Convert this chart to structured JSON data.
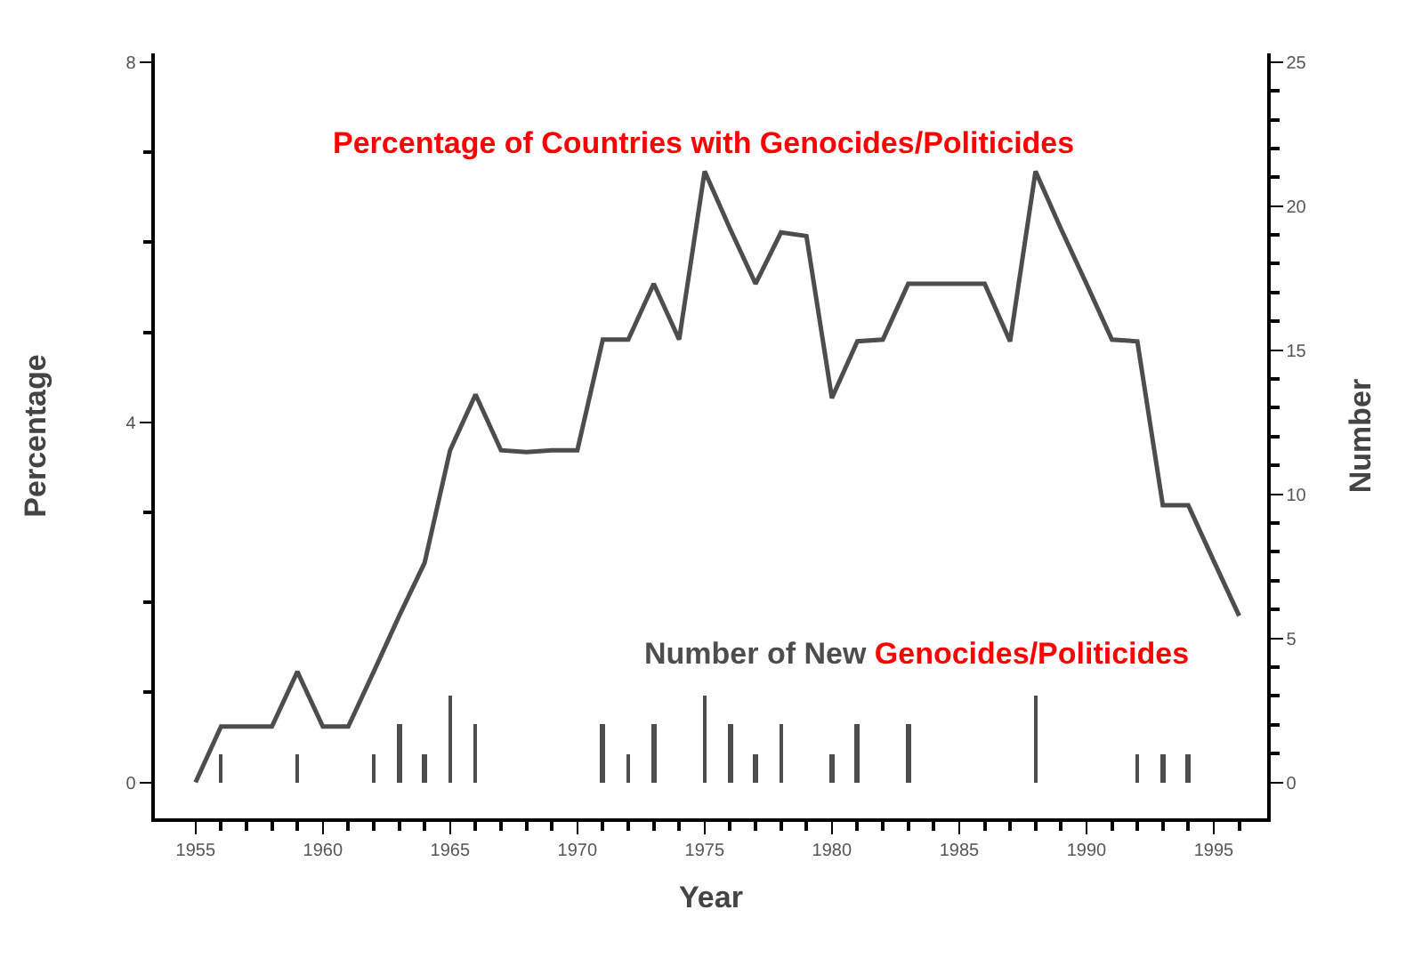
{
  "chart_data": {
    "type": "line",
    "xlabel": "Year",
    "ylabel": "Percentage",
    "y2label": "Number",
    "series": [
      {
        "name": "Percentage of Countries with Genocides/Politicides",
        "color": "#4d4d4d",
        "x": [
          1955,
          1956,
          1957,
          1958,
          1959,
          1960,
          1961,
          1962,
          1963,
          1964,
          1965,
          1966,
          1967,
          1968,
          1969,
          1970,
          1971,
          1972,
          1973,
          1974,
          1975,
          1976,
          1977,
          1978,
          1979,
          1980,
          1981,
          1982,
          1983,
          1984,
          1985,
          1986,
          1987,
          1988,
          1989,
          1990,
          1991,
          1992,
          1993,
          1994,
          1995,
          1996
        ],
        "values": [
          0,
          0.62,
          0.62,
          0.62,
          1.23,
          0.62,
          0.62,
          1.23,
          1.85,
          2.44,
          3.69,
          4.31,
          3.69,
          3.67,
          3.69,
          3.69,
          4.92,
          4.92,
          5.54,
          4.92,
          6.79,
          6.15,
          5.54,
          6.11,
          6.07,
          4.27,
          4.9,
          4.92,
          5.54,
          5.54,
          5.54,
          5.54,
          4.9,
          6.79,
          6.15,
          5.54,
          4.92,
          4.9,
          3.08,
          3.08,
          2.46,
          1.85
        ]
      },
      {
        "name": "Number of New Genocides/Politicides",
        "type": "bar",
        "axis": "y2",
        "color": "#4d4d4d",
        "x": [
          1956,
          1957,
          1958,
          1959,
          1960,
          1961,
          1962,
          1963,
          1964,
          1965,
          1966,
          1967,
          1968,
          1969,
          1970,
          1971,
          1972,
          1973,
          1974,
          1975,
          1976,
          1977,
          1978,
          1979,
          1980,
          1981,
          1982,
          1983,
          1984,
          1985,
          1986,
          1987,
          1988,
          1989,
          1990,
          1991,
          1992,
          1993,
          1994,
          1995,
          1996
        ],
        "values": [
          1,
          0,
          0,
          1,
          0,
          0,
          1,
          2,
          1,
          3,
          2,
          0,
          0,
          0,
          0,
          2,
          1,
          2,
          0,
          3,
          2,
          1,
          2,
          0,
          1,
          2,
          0,
          2,
          0,
          0,
          0,
          0,
          3,
          0,
          0,
          0,
          1,
          1,
          1,
          0,
          0
        ]
      }
    ],
    "xlim": [
      1953.4,
      1997.1
    ],
    "xticks": [
      1955,
      {
        "value": 1956,
        "label": null
      },
      {
        "value": 1957,
        "label": null
      },
      {
        "value": 1958,
        "label": null
      },
      {
        "value": 1959,
        "label": null
      },
      1960,
      {
        "value": 1961,
        "label": null
      },
      {
        "value": 1962,
        "label": null
      },
      {
        "value": 1963,
        "label": null
      },
      {
        "value": 1964,
        "label": null
      },
      1965,
      {
        "value": 1966,
        "label": null
      },
      {
        "value": 1967,
        "label": null
      },
      {
        "value": 1968,
        "label": null
      },
      {
        "value": 1969,
        "label": null
      },
      1970,
      {
        "value": 1971,
        "label": null
      },
      {
        "value": 1972,
        "label": null
      },
      {
        "value": 1973,
        "label": null
      },
      {
        "value": 1974,
        "label": null
      },
      1975,
      {
        "value": 1976,
        "label": null
      },
      {
        "value": 1977,
        "label": null
      },
      {
        "value": 1978,
        "label": null
      },
      {
        "value": 1979,
        "label": null
      },
      1980,
      {
        "value": 1981,
        "label": null
      },
      {
        "value": 1982,
        "label": null
      },
      {
        "value": 1983,
        "label": null
      },
      {
        "value": 1984,
        "label": null
      },
      1985,
      {
        "value": 1986,
        "label": null
      },
      {
        "value": 1987,
        "label": null
      },
      {
        "value": 1988,
        "label": null
      },
      {
        "value": 1989,
        "label": null
      },
      1990,
      {
        "value": 1991,
        "label": null
      },
      {
        "value": 1992,
        "label": null
      },
      {
        "value": 1993,
        "label": null
      },
      {
        "value": 1994,
        "label": null
      },
      1995,
      {
        "value": 1996,
        "label": null
      }
    ],
    "ylim": [
      -0.4,
      8.1
    ],
    "yticks": [
      0,
      {
        "value": 1,
        "label": null
      },
      {
        "value": 2,
        "label": null
      },
      {
        "value": 3,
        "label": null
      },
      4,
      {
        "value": 5,
        "label": null
      },
      {
        "value": 6,
        "label": null
      },
      {
        "value": 7,
        "label": null
      },
      8
    ],
    "y2lim": [
      -1.25,
      25.3
    ],
    "y2ticks": [
      0,
      {
        "value": 1,
        "label": null
      },
      {
        "value": 2,
        "label": null
      },
      {
        "value": 3,
        "label": null
      },
      {
        "value": 4,
        "label": null
      },
      5,
      {
        "value": 6,
        "label": null
      },
      {
        "value": 7,
        "label": null
      },
      {
        "value": 8,
        "label": null
      },
      {
        "value": 9,
        "label": null
      },
      10,
      {
        "value": 11,
        "label": null
      },
      {
        "value": 12,
        "label": null
      },
      {
        "value": 13,
        "label": null
      },
      {
        "value": 14,
        "label": null
      },
      15,
      {
        "value": 16,
        "label": null
      },
      {
        "value": 17,
        "label": null
      },
      {
        "value": 18,
        "label": null
      },
      {
        "value": 19,
        "label": null
      },
      20,
      {
        "value": 21,
        "label": null
      },
      {
        "value": 22,
        "label": null
      },
      {
        "value": 23,
        "label": null
      },
      {
        "value": 24,
        "label": null
      },
      25
    ],
    "legend": false
  }
}
